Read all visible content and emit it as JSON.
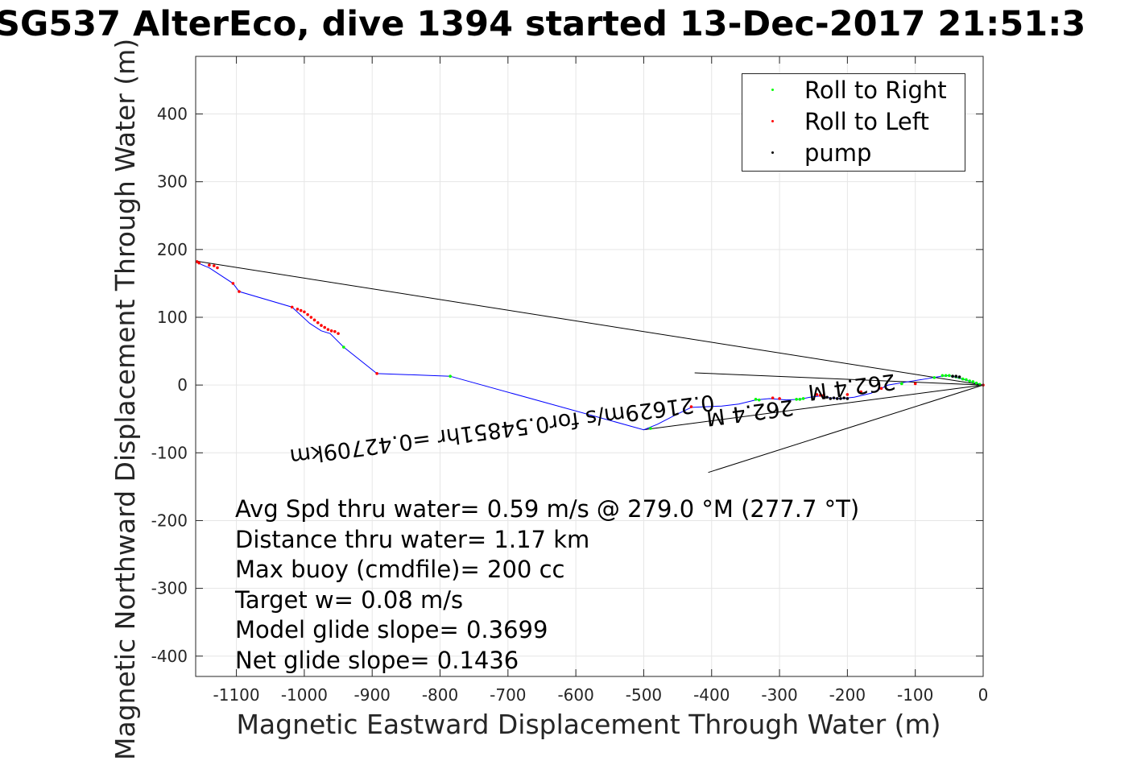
{
  "chart_data": {
    "type": "line",
    "title": "SG537 AlterEco, dive 1394 started 13-Dec-2017 21:51:3",
    "xlabel": "Magnetic Eastward Displacement Through Water (m)",
    "ylabel": "Magnetic Northward Displacement Through Water (m)",
    "xlim": [
      -1160,
      0
    ],
    "ylim": [
      -430,
      485
    ],
    "xticks": [
      -1100,
      -1000,
      -900,
      -800,
      -700,
      -600,
      -500,
      -400,
      -300,
      -200,
      -100,
      0
    ],
    "xtick_labels": [
      "-1100",
      "-1000",
      "-900",
      "-800",
      "-700",
      "-600",
      "-500",
      "-400",
      "-300",
      "-200",
      "-100",
      "0"
    ],
    "yticks": [
      400,
      300,
      200,
      100,
      0,
      -100,
      -200,
      -300,
      -400
    ],
    "ytick_labels": [
      "400",
      "300",
      "200",
      "100",
      "0",
      "-100",
      "-200",
      "-300",
      "-400"
    ],
    "grid": true,
    "legend_position": "top-right",
    "series": [
      {
        "name": "track",
        "color": "#0000ff",
        "x": [
          0,
          -18,
          -35,
          -50,
          -62,
          -85,
          -110,
          -140,
          -165,
          -190,
          -210,
          -225,
          -240,
          -255,
          -270,
          -290,
          -315,
          -335,
          -360,
          -385,
          -410,
          -430,
          -455,
          -480,
          -500,
          -785,
          -893,
          -942,
          -962,
          -975,
          -992,
          -1005,
          -1018,
          -1096,
          -1105,
          -1140,
          -1152,
          -1160
        ],
        "y": [
          0,
          5,
          10,
          14,
          13,
          9,
          5,
          0,
          -12,
          -18,
          -20,
          -19,
          -16,
          -18,
          -21,
          -22,
          -20,
          -22,
          -28,
          -31,
          -32,
          -33,
          -45,
          -58,
          -66,
          13,
          17,
          56,
          76,
          80,
          91,
          103,
          115,
          138,
          150,
          173,
          178,
          183
        ]
      },
      {
        "name": "Roll to Right",
        "color": "#00ff00",
        "x": [
          -5,
          -10,
          -15,
          -20,
          -25,
          -30,
          -35,
          -40,
          -45,
          -50,
          -55,
          -60,
          -72,
          -120,
          -265,
          -270,
          -275,
          -330,
          -335,
          -785,
          -942,
          -490
        ],
        "y": [
          1,
          3,
          5,
          6,
          8,
          9,
          11,
          12,
          13,
          14,
          14,
          14,
          11,
          2,
          -20,
          -21,
          -21,
          -22,
          -21,
          13,
          56,
          -64
        ]
      },
      {
        "name": "Roll to Left",
        "color": "#ff0000",
        "x": [
          -1158,
          -1155,
          -1140,
          -1133,
          -1128,
          -1105,
          -1096,
          -1018,
          -1010,
          -1005,
          -1000,
          -995,
          -990,
          -985,
          -980,
          -975,
          -970,
          -965,
          -960,
          -955,
          -950,
          -893,
          -430,
          -310,
          -300,
          -245,
          -240,
          -235,
          -100,
          -150,
          -180,
          -200,
          0
        ],
        "y": [
          182,
          180,
          177,
          176,
          173,
          150,
          138,
          115,
          112,
          110,
          108,
          104,
          100,
          96,
          92,
          88,
          85,
          82,
          80,
          79,
          76,
          17,
          -32,
          -19,
          -20,
          -14,
          -15,
          -15,
          2,
          -5,
          -10,
          -14,
          0
        ]
      },
      {
        "name": "pump",
        "color": "#000000",
        "x": [
          -200,
          -205,
          -210,
          -215,
          -220,
          -225,
          -230,
          -35,
          -40,
          -45
        ],
        "y": [
          -20,
          -19,
          -20,
          -20,
          -19,
          -20,
          -18,
          12,
          13,
          13
        ]
      }
    ],
    "reference_lines": {
      "color": "#000000",
      "segments": [
        {
          "from": [
            0,
            0
          ],
          "to": [
            -425,
            18
          ]
        },
        {
          "from": [
            0,
            0
          ],
          "to": [
            -405,
            -129
          ]
        },
        {
          "from": [
            0,
            0
          ],
          "to": [
            -1160,
            183
          ]
        },
        {
          "from": [
            0,
            0
          ],
          "to": [
            -500,
            -66
          ]
        }
      ]
    },
    "annotations": [
      {
        "text": "262.4 M",
        "x": -195,
        "y": 8,
        "angle": 172.6
      },
      {
        "text": "0.21629m/s for0.54851hr =0.42709km",
        "x": -710,
        "y": -55,
        "angle": 172.6
      },
      {
        "text": "262.4 M",
        "x": -345,
        "y": -30,
        "angle": 172.6
      }
    ]
  },
  "legend": {
    "items": [
      {
        "label": "Roll to Right",
        "color": "#00ff00"
      },
      {
        "label": "Roll to Left",
        "color": "#ff0000"
      },
      {
        "label": "pump",
        "color": "#000000"
      }
    ]
  },
  "stats": [
    "Avg Spd thru water=  0.59 m/s @ 279.0 °M (277.7 °T)",
    "Distance thru water=  1.17 km",
    "Max buoy (cmdfile)= 200 cc",
    "Target w= 0.08 m/s",
    "Model glide slope= 0.3699",
    "Net glide slope= 0.1436"
  ]
}
